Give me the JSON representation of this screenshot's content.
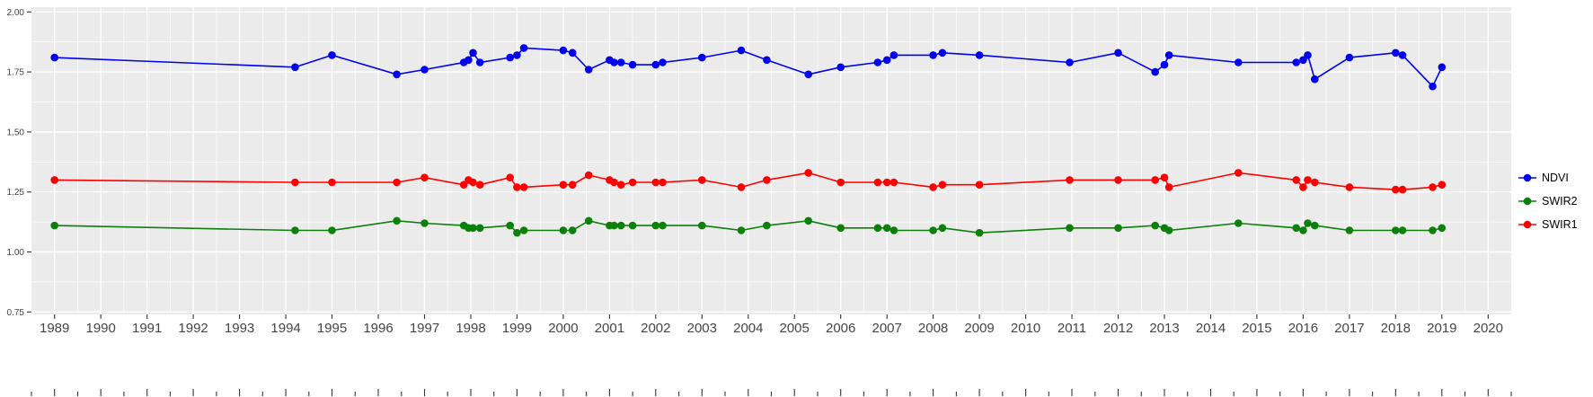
{
  "chart_data": {
    "type": "line",
    "title": "",
    "xlabel": "",
    "ylabel": "",
    "grid": true,
    "legend_position": "right",
    "panel_bg": "#EBEBEB",
    "grid_color": "#FFFFFF",
    "axis_text_color": "#454545",
    "x_range": [
      1988.5,
      2020.5
    ],
    "y_range": [
      0.74,
      2.02
    ],
    "x_tick_labels": [
      "1989",
      "1990",
      "1991",
      "1992",
      "1993",
      "1994",
      "1995",
      "1996",
      "1997",
      "1998",
      "1999",
      "2000",
      "2001",
      "2002",
      "2003",
      "2004",
      "2005",
      "2006",
      "2007",
      "2008",
      "2009",
      "2010",
      "2011",
      "2012",
      "2013",
      "2014",
      "2015",
      "2016",
      "2017",
      "2018",
      "2019",
      "2020"
    ],
    "y_tick_labels": [
      "2.00",
      "1.75",
      "1.50",
      "1.25",
      "1.00",
      "0.75"
    ],
    "y_tick_values": [
      2.0,
      1.75,
      1.5,
      1.25,
      1.0,
      0.75
    ],
    "x": [
      1989.0,
      1994.2,
      1995.0,
      1996.4,
      1997.0,
      1997.85,
      1997.95,
      1998.05,
      1998.2,
      1998.85,
      1999.0,
      1999.15,
      2000.0,
      2000.2,
      2000.55,
      2001.0,
      2001.1,
      2001.25,
      2001.5,
      2002.0,
      2002.15,
      2003.0,
      2003.85,
      2004.4,
      2005.3,
      2006.0,
      2006.8,
      2007.0,
      2007.15,
      2008.0,
      2008.2,
      2009.0,
      2010.95,
      2012.0,
      2012.8,
      2013.0,
      2013.1,
      2014.6,
      2015.85,
      2016.0,
      2016.1,
      2016.25,
      2017.0,
      2018.0,
      2018.15,
      2018.8,
      2019.0
    ],
    "series": [
      {
        "name": "NDVI",
        "color": "#0000EE",
        "values": [
          1.81,
          1.77,
          1.82,
          1.74,
          1.76,
          1.79,
          1.8,
          1.83,
          1.79,
          1.81,
          1.82,
          1.85,
          1.84,
          1.83,
          1.76,
          1.8,
          1.79,
          1.79,
          1.78,
          1.78,
          1.79,
          1.81,
          1.84,
          1.8,
          1.74,
          1.77,
          1.79,
          1.8,
          1.82,
          1.82,
          1.83,
          1.82,
          1.79,
          1.83,
          1.75,
          1.78,
          1.82,
          1.79,
          1.79,
          1.8,
          1.82,
          1.72,
          1.81,
          1.83,
          1.82,
          1.69,
          1.77
        ]
      },
      {
        "name": "SWIR2",
        "color": "#0B800B",
        "values": [
          1.11,
          1.09,
          1.09,
          1.13,
          1.12,
          1.11,
          1.1,
          1.1,
          1.1,
          1.11,
          1.08,
          1.09,
          1.09,
          1.09,
          1.13,
          1.11,
          1.11,
          1.11,
          1.11,
          1.11,
          1.11,
          1.11,
          1.09,
          1.11,
          1.13,
          1.1,
          1.1,
          1.1,
          1.09,
          1.09,
          1.1,
          1.08,
          1.1,
          1.1,
          1.11,
          1.1,
          1.09,
          1.12,
          1.1,
          1.09,
          1.12,
          1.11,
          1.09,
          1.09,
          1.09,
          1.09,
          1.1
        ]
      },
      {
        "name": "SWIR1",
        "color": "#FF0000",
        "values": [
          1.3,
          1.29,
          1.29,
          1.29,
          1.31,
          1.28,
          1.3,
          1.29,
          1.28,
          1.31,
          1.27,
          1.27,
          1.28,
          1.28,
          1.32,
          1.3,
          1.29,
          1.28,
          1.29,
          1.29,
          1.29,
          1.3,
          1.27,
          1.3,
          1.33,
          1.29,
          1.29,
          1.29,
          1.29,
          1.27,
          1.28,
          1.28,
          1.3,
          1.3,
          1.3,
          1.31,
          1.27,
          1.33,
          1.3,
          1.27,
          1.3,
          1.29,
          1.27,
          1.26,
          1.26,
          1.27,
          1.28
        ]
      }
    ]
  },
  "legend": {
    "items": [
      {
        "label": "NDVI",
        "color": "#0000EE"
      },
      {
        "label": "SWIR2",
        "color": "#0B800B"
      },
      {
        "label": "SWIR1",
        "color": "#FF0000"
      }
    ]
  }
}
